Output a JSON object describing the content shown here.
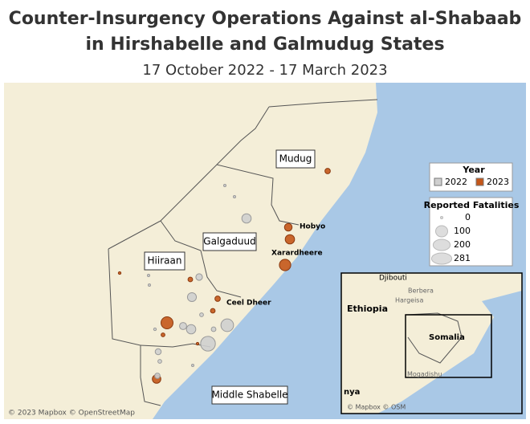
{
  "header": {
    "title": [
      "Counter-Insurgency Operations Against al-Shabaab",
      "in Hirshabelle and Galmudug States"
    ],
    "subtitle": "17 October 2022 - 17 March 2023"
  },
  "legend": {
    "year": {
      "title": "Year",
      "items": [
        {
          "label": "2022",
          "color": "#cfcfcf"
        },
        {
          "label": "2023",
          "color": "#c4571a"
        }
      ]
    },
    "size": {
      "title": "Reported Fatalities",
      "values": [
        0,
        100,
        200,
        281
      ]
    }
  },
  "map": {
    "regions": [
      "Mudug",
      "Galgaduud",
      "Hiiraan",
      "Middle Shabelle"
    ],
    "cities": [
      "Hobyo",
      "Xarardheere",
      "Ceel Dheer"
    ],
    "inset_labels": [
      "Djibouti",
      "Berbera",
      "Hargeisa",
      "Ethiopia",
      "Somalia",
      "Mogadishu",
      "nya"
    ],
    "attribution": "© 2023 Mapbox © OpenStreetMap",
    "inset_attribution": "© Mapbox © OSM"
  },
  "events": [
    {
      "year": "2023",
      "fatalities": 20
    },
    {
      "year": "2023",
      "fatalities": 40
    },
    {
      "year": "2023",
      "fatalities": 60
    },
    {
      "year": "2023",
      "fatalities": 90
    },
    {
      "year": "2022",
      "fatalities": 60
    },
    {
      "year": "2022",
      "fatalities": 1
    },
    {
      "year": "2022",
      "fatalities": 1
    },
    {
      "year": "2023",
      "fatalities": 5
    },
    {
      "year": "2022",
      "fatalities": 3
    },
    {
      "year": "2022",
      "fatalities": 2
    },
    {
      "year": "2023",
      "fatalities": 15
    },
    {
      "year": "2022",
      "fatalities": 55
    },
    {
      "year": "2022",
      "fatalities": 30
    },
    {
      "year": "2023",
      "fatalities": 20
    },
    {
      "year": "2023",
      "fatalities": 15
    },
    {
      "year": "2023",
      "fatalities": 100
    },
    {
      "year": "2022",
      "fatalities": 35
    },
    {
      "year": "2022",
      "fatalities": 60
    },
    {
      "year": "2022",
      "fatalities": 110
    },
    {
      "year": "2022",
      "fatalities": 150
    },
    {
      "year": "2023",
      "fatalities": 10
    },
    {
      "year": "2022",
      "fatalities": 5
    },
    {
      "year": "2022",
      "fatalities": 25
    },
    {
      "year": "2022",
      "fatalities": 10
    },
    {
      "year": "2023",
      "fatalities": 50
    },
    {
      "year": "2022",
      "fatalities": 20
    },
    {
      "year": "2022",
      "fatalities": 10
    },
    {
      "year": "2022",
      "fatalities": 15
    },
    {
      "year": "2023",
      "fatalities": 5
    },
    {
      "year": "2022",
      "fatalities": 4
    }
  ]
}
